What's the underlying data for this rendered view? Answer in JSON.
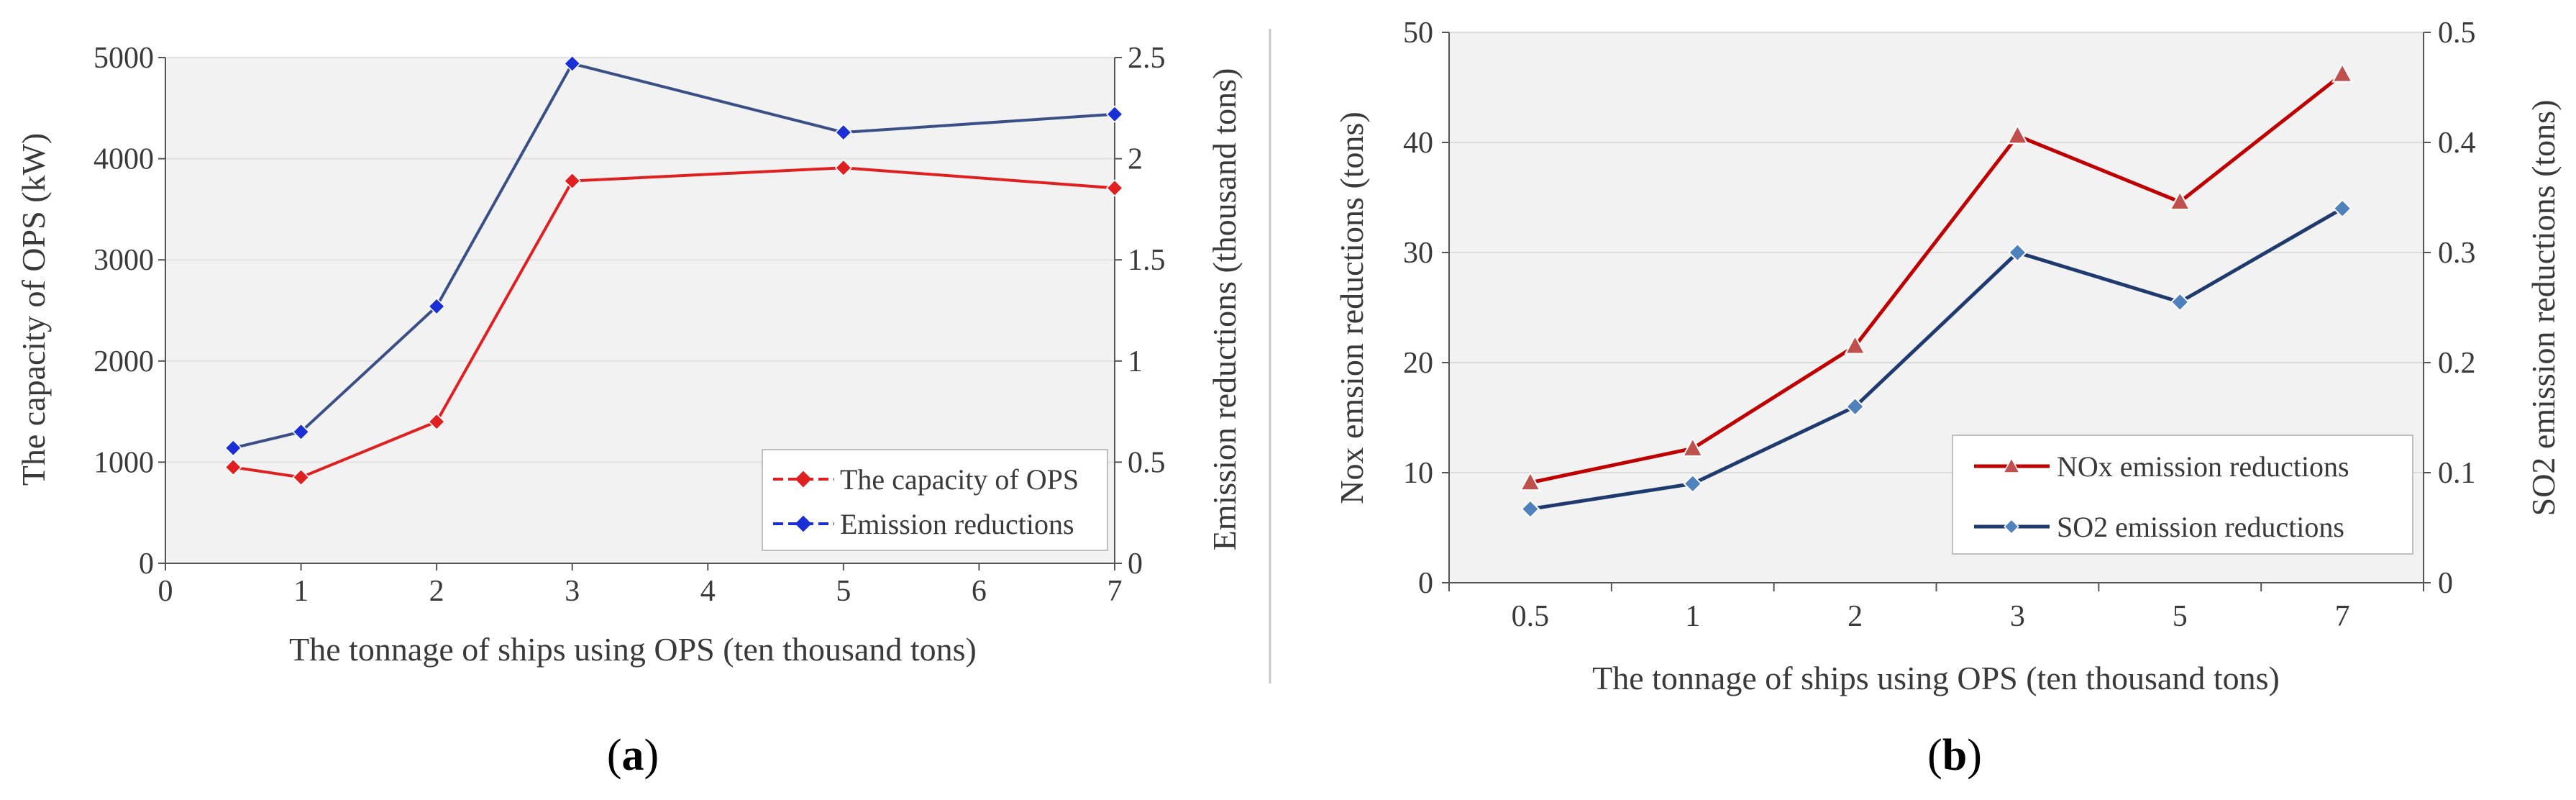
{
  "chart_data": [
    {
      "type": "line",
      "panel": "a",
      "caption_letter": "a",
      "xlabel": "The tonnage of ships using OPS (ten thousand tons)",
      "ylabel": "The capacity of OPS (kW)",
      "y2label": "Emission reductions (thousand tons)",
      "xlim": [
        0,
        7
      ],
      "ylim": [
        0,
        5000
      ],
      "y2lim": [
        0,
        2.5
      ],
      "x_tick_labels": [
        "0",
        "1",
        "2",
        "3",
        "4",
        "5",
        "6",
        "7"
      ],
      "y_tick_labels": [
        "0",
        "1000",
        "2000",
        "3000",
        "4000",
        "5000"
      ],
      "y2_tick_labels": [
        "0",
        "0.5",
        "1",
        "1.5",
        "2",
        "2.5"
      ],
      "grid": true,
      "legend_position": "bottom-right",
      "series": [
        {
          "name": "The capacity of OPS",
          "axis": "left",
          "color": "#e02020",
          "marker": "diamond",
          "x": [
            0.5,
            1,
            2,
            3,
            5,
            7
          ],
          "values": [
            950,
            850,
            1400,
            3780,
            3910,
            3710
          ]
        },
        {
          "name": "Emission reductions",
          "axis": "right",
          "color": "#1a2fd6",
          "line_color": "#3a4f86",
          "marker": "diamond",
          "x": [
            0.5,
            1,
            2,
            3,
            5,
            7
          ],
          "values": [
            0.57,
            0.65,
            1.27,
            2.47,
            2.13,
            2.22
          ]
        }
      ]
    },
    {
      "type": "line",
      "panel": "b",
      "caption_letter": "b",
      "xlabel": "The tonnage of ships using OPS (ten thousand tons)",
      "ylabel": "Nox emsion reductions (tons)",
      "y2label": "SO2 emission reductions (tons)",
      "categories": [
        "0.5",
        "1",
        "2",
        "3",
        "5",
        "7"
      ],
      "ylim": [
        0,
        50
      ],
      "y2lim": [
        0,
        0.5
      ],
      "y_tick_labels": [
        "0",
        "10",
        "20",
        "30",
        "40",
        "50"
      ],
      "y2_tick_labels": [
        "0",
        "0.1",
        "0.2",
        "0.3",
        "0.4",
        "0.5"
      ],
      "grid": true,
      "legend_position": "bottom-right",
      "series": [
        {
          "name": "NOx emission reductions",
          "axis": "left",
          "color": "#c00000",
          "marker_color": "#c0504d",
          "marker": "triangle",
          "values": [
            9.1,
            12.2,
            21.5,
            40.6,
            34.6,
            46.2
          ]
        },
        {
          "name": "SO2 emission reductions",
          "axis": "right",
          "color": "#1f3a6e",
          "marker_color": "#4f81bd",
          "marker": "diamond",
          "values": [
            0.067,
            0.09,
            0.16,
            0.3,
            0.255,
            0.34
          ]
        }
      ]
    }
  ]
}
